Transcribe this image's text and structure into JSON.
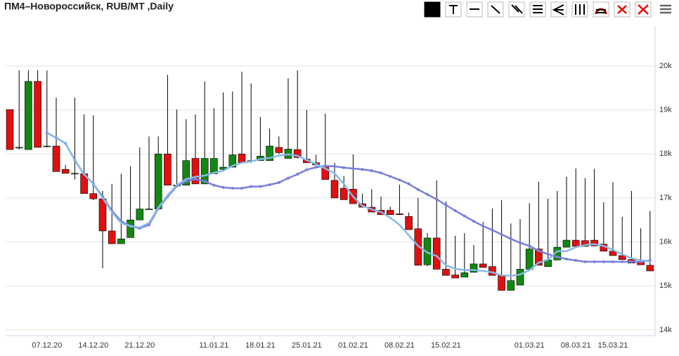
{
  "chart_data": {
    "type": "candlestick",
    "title": "ПМ4–Новороссийск, RUB/MT ,Daily",
    "categories": [
      null,
      null,
      null,
      null,
      "07.12.20",
      null,
      null,
      null,
      null,
      "14.12.20",
      null,
      null,
      null,
      null,
      "21.12.20",
      null,
      null,
      null,
      null,
      null,
      null,
      null,
      "11.01.21",
      null,
      null,
      null,
      null,
      "18.01.21",
      null,
      null,
      null,
      null,
      "25.01.21",
      null,
      null,
      null,
      null,
      "01.02.21",
      null,
      null,
      null,
      null,
      "08.02.21",
      null,
      null,
      null,
      null,
      "15.02.21",
      null,
      null,
      null,
      null,
      null,
      null,
      null,
      null,
      "01.03.21",
      null,
      null,
      null,
      null,
      "08.03.21",
      null,
      null,
      null,
      "15.03.21",
      null,
      null,
      null,
      null
    ],
    "open": [
      19010,
      18150,
      18100,
      19650,
      18180,
      18180,
      17650,
      17560,
      17550,
      17100,
      16980,
      16250,
      15960,
      16100,
      16500,
      16750,
      16750,
      18000,
      17290,
      17290,
      17900,
      17320,
      17550,
      17650,
      17700,
      18000,
      17850,
      17850,
      17850,
      18150,
      17900,
      18100,
      17880,
      17800,
      17720,
      17400,
      17220,
      17200,
      16870,
      16790,
      16720,
      16720,
      16640,
      16580,
      16300,
      15480,
      16090,
      15380,
      15250,
      15200,
      15310,
      15500,
      15440,
      15250,
      14900,
      15020,
      15380,
      15840,
      15440,
      15590,
      15880,
      16040,
      16030,
      16040,
      15950,
      15790,
      15690,
      15600,
      15550,
      15470
    ],
    "high": [
      19010,
      19900,
      19900,
      19900,
      19900,
      19280,
      17750,
      19280,
      18900,
      18880,
      17160,
      17320,
      17550,
      17720,
      18150,
      18400,
      18400,
      19800,
      19010,
      18790,
      18900,
      19650,
      19040,
      19400,
      19420,
      19870,
      19600,
      18840,
      18580,
      18400,
      19720,
      19900,
      19000,
      17980,
      18920,
      17800,
      17500,
      17990,
      17100,
      17200,
      17030,
      16800,
      17300,
      16670,
      17000,
      16200,
      17400,
      16920,
      16140,
      16200,
      15930,
      16460,
      16760,
      16950,
      16420,
      16520,
      16880,
      17370,
      16980,
      17160,
      17480,
      17670,
      17450,
      17660,
      16900,
      17360,
      16570,
      17160,
      16310,
      16700
    ],
    "low": [
      18100,
      18100,
      18100,
      18150,
      18150,
      17600,
      17560,
      17420,
      17100,
      16950,
      15400,
      15950,
      15960,
      16100,
      16500,
      16750,
      16750,
      17290,
      17250,
      17290,
      17320,
      17320,
      17550,
      17600,
      17700,
      17800,
      17800,
      17850,
      17850,
      18000,
      17900,
      17900,
      17800,
      17750,
      17420,
      17000,
      16960,
      16870,
      16790,
      16680,
      16620,
      16620,
      16620,
      16280,
      15460,
      15450,
      15380,
      15240,
      15180,
      15200,
      15310,
      15420,
      15240,
      14900,
      14900,
      15020,
      15380,
      15470,
      15440,
      15590,
      15880,
      15900,
      15900,
      15910,
      15790,
      15690,
      15600,
      15520,
      15480,
      15340
    ],
    "close": [
      18100,
      18150,
      19650,
      18150,
      18180,
      17600,
      17560,
      17560,
      17100,
      16980,
      16250,
      15960,
      16070,
      16500,
      16750,
      16750,
      18000,
      17290,
      17290,
      17850,
      17320,
      17900,
      17900,
      17700,
      17980,
      17800,
      17850,
      17950,
      18180,
      18030,
      18110,
      17920,
      17800,
      17750,
      17420,
      17000,
      16960,
      16870,
      16790,
      16680,
      16620,
      16620,
      16620,
      16280,
      15470,
      16090,
      15380,
      15240,
      15180,
      15300,
      15500,
      15420,
      15240,
      14900,
      15120,
      15380,
      15840,
      15470,
      15590,
      15880,
      16040,
      15900,
      15900,
      15910,
      15790,
      15690,
      15600,
      15520,
      15480,
      15340
    ],
    "up_color": "#118811",
    "down_color": "#e01010",
    "overlays": [
      {
        "color": "#7a7fd9",
        "values": [
          null,
          null,
          null,
          null,
          18480,
          18370,
          18240,
          17860,
          17540,
          17320,
          17030,
          16710,
          16470,
          16360,
          16310,
          16390,
          16760,
          17030,
          17270,
          17380,
          17430,
          17380,
          17290,
          17240,
          17220,
          17220,
          17260,
          17260,
          17300,
          17350,
          17450,
          17540,
          17640,
          17700,
          17730,
          17720,
          17690,
          17670,
          17650,
          17620,
          17570,
          17490,
          17410,
          17320,
          17190,
          17080,
          16970,
          16840,
          16710,
          16590,
          16470,
          16360,
          16270,
          16170,
          16070,
          15980,
          15910,
          15800,
          15720,
          15660,
          15610,
          15580,
          15550,
          15550,
          15550,
          15550,
          15550,
          15550,
          15550,
          15580
        ]
      },
      {
        "color": "#86b9e8",
        "values": [
          null,
          null,
          null,
          null,
          18480,
          18370,
          18240,
          17860,
          17540,
          17320,
          17000,
          16680,
          16430,
          16360,
          16330,
          16430,
          16780,
          17060,
          17290,
          17430,
          17480,
          17510,
          17570,
          17620,
          17730,
          17800,
          17830,
          17880,
          17910,
          17960,
          17990,
          17960,
          17860,
          17770,
          17670,
          17560,
          17320,
          17030,
          16820,
          16740,
          16680,
          16550,
          16390,
          16150,
          15910,
          15760,
          15680,
          15470,
          15390,
          15360,
          15360,
          15340,
          15310,
          15240,
          15230,
          15260,
          15360,
          15530,
          15600,
          15790,
          15790,
          15880,
          15930,
          15950,
          15910,
          15820,
          15720,
          15630,
          15580,
          15560
        ]
      }
    ],
    "ylim": [
      13870,
      20910
    ],
    "yticks": [
      {
        "value": 14000,
        "label": "14k"
      },
      {
        "value": 15000,
        "label": "15k"
      },
      {
        "value": 16000,
        "label": "16k"
      },
      {
        "value": 17000,
        "label": "17k"
      },
      {
        "value": 18000,
        "label": "18k"
      },
      {
        "value": 19000,
        "label": "19k"
      },
      {
        "value": 20000,
        "label": "20k"
      }
    ],
    "grid": true
  }
}
